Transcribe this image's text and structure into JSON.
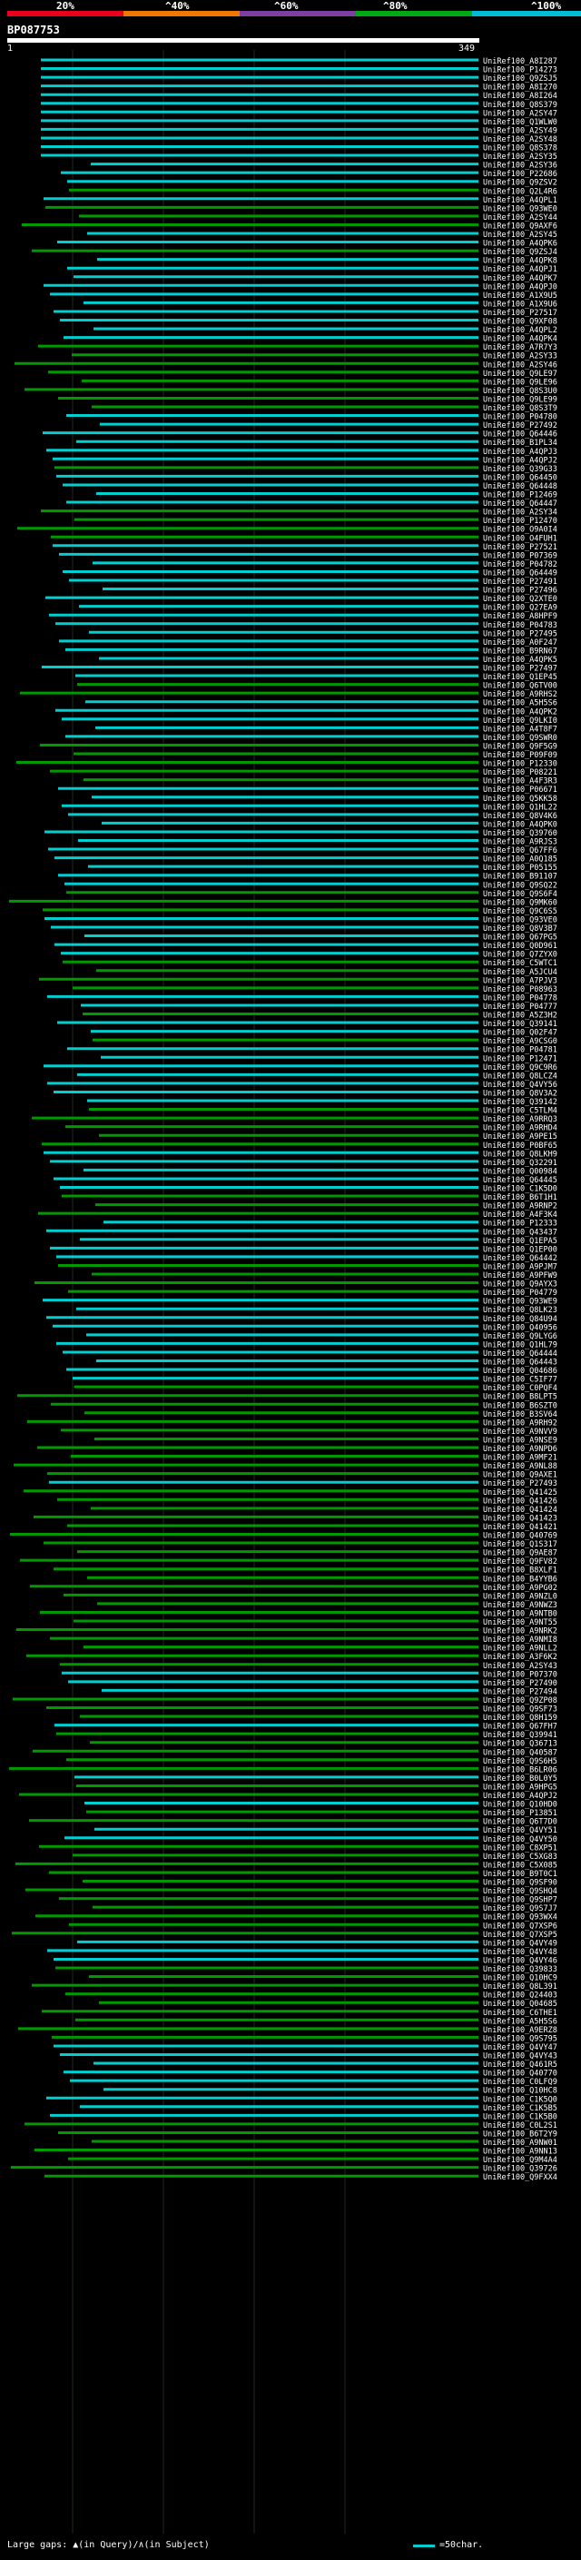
{
  "scale": {
    "labels": [
      "20%",
      "^40%",
      "^60%",
      "^80%",
      "^100%"
    ],
    "colors": [
      "#e8001c",
      "#f07800",
      "#7d3fa0",
      "#00a814",
      "#00bcd4"
    ]
  },
  "query": {
    "accession": "BP087753",
    "start": "1",
    "end": "349"
  },
  "footer": {
    "gaps_text": "Large gaps: ▲(in Query)/∧(in Subject)",
    "legend_text": "=50char."
  },
  "chart_data": {
    "type": "alignment",
    "title": "BP087753",
    "query_length": 349,
    "colors": {
      "cyan": "#00ced1",
      "green": "#009900"
    },
    "hits": [
      {
        "label": "UniRef100_A8I287",
        "color": "cyan"
      },
      {
        "label": "UniRef100_P14273",
        "color": "cyan"
      },
      {
        "label": "UniRef100_Q9ZSJ5",
        "color": "cyan"
      },
      {
        "label": "UniRef100_A8I270",
        "color": "cyan"
      },
      {
        "label": "UniRef100_A8I264",
        "color": "cyan"
      },
      {
        "label": "UniRef100_Q8S379",
        "color": "cyan"
      },
      {
        "label": "UniRef100_A2SY47",
        "color": "cyan"
      },
      {
        "label": "UniRef100_Q1WLW0",
        "color": "cyan"
      },
      {
        "label": "UniRef100_A2SY49",
        "color": "cyan"
      },
      {
        "label": "UniRef100_A2SY48",
        "color": "cyan"
      },
      {
        "label": "UniRef100_Q8S378",
        "color": "cyan"
      },
      {
        "label": "UniRef100_A2SY35",
        "color": "cyan"
      },
      {
        "label": "UniRef100_A2SY36",
        "color": "cyan"
      },
      {
        "label": "UniRef100_P22686",
        "color": "cyan"
      },
      {
        "label": "UniRef100_Q9ZSV2",
        "color": "cyan"
      },
      {
        "label": "UniRef100_Q2L4R6",
        "color": "green"
      },
      {
        "label": "UniRef100_A4QPL1",
        "color": "cyan"
      },
      {
        "label": "UniRef100_Q93WE0",
        "color": "green"
      },
      {
        "label": "UniRef100_A2SY44",
        "color": "green"
      },
      {
        "label": "UniRef100_Q9AXF6",
        "color": "green"
      },
      {
        "label": "UniRef100_A2SY45",
        "color": "cyan"
      },
      {
        "label": "UniRef100_A4QPK6",
        "color": "cyan"
      },
      {
        "label": "UniRef100_Q9ZSJ4",
        "color": "green"
      },
      {
        "label": "UniRef100_A4QPK8",
        "color": "cyan"
      },
      {
        "label": "UniRef100_A4QPJ1",
        "color": "cyan"
      },
      {
        "label": "UniRef100_A4QPK7",
        "color": "cyan"
      },
      {
        "label": "UniRef100_A4QPJ0",
        "color": "cyan"
      },
      {
        "label": "UniRef100_A1X9U5",
        "color": "cyan"
      },
      {
        "label": "UniRef100_A1X9U6",
        "color": "cyan"
      },
      {
        "label": "UniRef100_P27517",
        "color": "cyan"
      },
      {
        "label": "UniRef100_Q9XF08",
        "color": "cyan"
      },
      {
        "label": "UniRef100_A4QPL2",
        "color": "cyan"
      },
      {
        "label": "UniRef100_A4QPK4",
        "color": "cyan"
      },
      {
        "label": "UniRef100_A7R7Y3",
        "color": "green"
      },
      {
        "label": "UniRef100_A2SY33",
        "color": "green"
      },
      {
        "label": "UniRef100_A2SY46",
        "color": "green"
      },
      {
        "label": "UniRef100_Q9LE97",
        "color": "green"
      },
      {
        "label": "UniRef100_Q9LE96",
        "color": "green"
      },
      {
        "label": "UniRef100_Q8S3U0",
        "color": "green"
      },
      {
        "label": "UniRef100_Q9LE99",
        "color": "green"
      },
      {
        "label": "UniRef100_Q8S3T9",
        "color": "green"
      },
      {
        "label": "UniRef100_P04780",
        "color": "cyan"
      },
      {
        "label": "UniRef100_P27492",
        "color": "cyan"
      },
      {
        "label": "UniRef100_Q64446",
        "color": "cyan"
      },
      {
        "label": "UniRef100_B1PL34",
        "color": "cyan"
      },
      {
        "label": "UniRef100_A4QPJ3",
        "color": "cyan"
      },
      {
        "label": "UniRef100_A4QPJ2",
        "color": "cyan"
      },
      {
        "label": "UniRef100_Q39G33",
        "color": "green"
      },
      {
        "label": "UniRef100_Q64450",
        "color": "cyan"
      },
      {
        "label": "UniRef100_Q64448",
        "color": "cyan"
      },
      {
        "label": "UniRef100_P12469",
        "color": "cyan"
      },
      {
        "label": "UniRef100_Q64447",
        "color": "cyan"
      },
      {
        "label": "UniRef100_A2SY34",
        "color": "green"
      },
      {
        "label": "UniRef100_P12470",
        "color": "green"
      },
      {
        "label": "UniRef100_O9A0I4",
        "color": "green"
      },
      {
        "label": "UniRef100_O4FUH1",
        "color": "green"
      },
      {
        "label": "UniRef100_P27521",
        "color": "cyan"
      },
      {
        "label": "UniRef100_P07369",
        "color": "cyan"
      },
      {
        "label": "UniRef100_P04782",
        "color": "cyan"
      },
      {
        "label": "UniRef100_Q64449",
        "color": "cyan"
      },
      {
        "label": "UniRef100_P27491",
        "color": "cyan"
      },
      {
        "label": "UniRef100_P27496",
        "color": "cyan"
      },
      {
        "label": "UniRef100_Q2XTE0",
        "color": "cyan"
      },
      {
        "label": "UniRef100_Q27EA9",
        "color": "cyan"
      },
      {
        "label": "UniRef100_A8HPF9",
        "color": "cyan"
      },
      {
        "label": "UniRef100_P04783",
        "color": "cyan"
      },
      {
        "label": "UniRef100_P27495",
        "color": "cyan"
      },
      {
        "label": "UniRef100_A0F247",
        "color": "cyan"
      },
      {
        "label": "UniRef100_B9RN67",
        "color": "cyan"
      },
      {
        "label": "UniRef100_A4QPK5",
        "color": "cyan"
      },
      {
        "label": "UniRef100_P27497",
        "color": "cyan"
      },
      {
        "label": "UniRef100_Q1EP45",
        "color": "cyan"
      },
      {
        "label": "UniRef100_Q6TV00",
        "color": "green"
      },
      {
        "label": "UniRef100_A9RHS2",
        "color": "green"
      },
      {
        "label": "UniRef100_A5H5S6",
        "color": "cyan"
      },
      {
        "label": "UniRef100_A4QPK2",
        "color": "cyan"
      },
      {
        "label": "UniRef100_Q9LKI0",
        "color": "cyan"
      },
      {
        "label": "UniRef100_A4T8F7",
        "color": "cyan"
      },
      {
        "label": "UniRef100_Q9SWR0",
        "color": "cyan"
      },
      {
        "label": "UniRef100_Q9F5G9",
        "color": "green"
      },
      {
        "label": "UniRef100_P09F09",
        "color": "green"
      },
      {
        "label": "UniRef100_P12330",
        "color": "green"
      },
      {
        "label": "UniRef100_P08221",
        "color": "green"
      },
      {
        "label": "UniRef100_A4F3R3",
        "color": "green"
      },
      {
        "label": "UniRef100_P06671",
        "color": "cyan"
      },
      {
        "label": "UniRef100_Q5KK58",
        "color": "cyan"
      },
      {
        "label": "UniRef100_Q1HL22",
        "color": "cyan"
      },
      {
        "label": "UniRef100_Q8V4K6",
        "color": "cyan"
      },
      {
        "label": "UniRef100_A4QPK0",
        "color": "cyan"
      },
      {
        "label": "UniRef100_Q39760",
        "color": "cyan"
      },
      {
        "label": "UniRef100_A9RJS3",
        "color": "cyan"
      },
      {
        "label": "UniRef100_Q67FF6",
        "color": "cyan"
      },
      {
        "label": "UniRef100_A0Q185",
        "color": "cyan"
      },
      {
        "label": "UniRef100_P05155",
        "color": "cyan"
      },
      {
        "label": "UniRef100_B91107",
        "color": "cyan"
      },
      {
        "label": "UniRef100_Q9SQ22",
        "color": "cyan"
      },
      {
        "label": "UniRef100_Q9S6F4",
        "color": "green"
      },
      {
        "label": "UniRef100_Q9MK60",
        "color": "green"
      },
      {
        "label": "UniRef100_Q9C6S5",
        "color": "green"
      },
      {
        "label": "UniRef100_Q93VE0",
        "color": "cyan"
      },
      {
        "label": "UniRef100_Q8V3B7",
        "color": "cyan"
      },
      {
        "label": "UniRef100_Q67PG5",
        "color": "cyan"
      },
      {
        "label": "UniRef100_Q0D961",
        "color": "cyan"
      },
      {
        "label": "UniRef100_Q7ZYX0",
        "color": "cyan"
      },
      {
        "label": "UniRef100_C5WTC1",
        "color": "green"
      },
      {
        "label": "UniRef100_A5JCU4",
        "color": "green"
      },
      {
        "label": "UniRef100_A7PJV3",
        "color": "green"
      },
      {
        "label": "UniRef100_P08963",
        "color": "green"
      },
      {
        "label": "UniRef100_P04778",
        "color": "cyan"
      },
      {
        "label": "UniRef100_P04777",
        "color": "cyan"
      },
      {
        "label": "UniRef100_A5Z3H2",
        "color": "green"
      },
      {
        "label": "UniRef100_Q39141",
        "color": "cyan"
      },
      {
        "label": "UniRef100_Q02F47",
        "color": "cyan"
      },
      {
        "label": "UniRef100_A9CSG0",
        "color": "green"
      },
      {
        "label": "UniRef100_P04781",
        "color": "cyan"
      },
      {
        "label": "UniRef100_P12471",
        "color": "cyan"
      },
      {
        "label": "UniRef100_Q9C9R6",
        "color": "cyan"
      },
      {
        "label": "UniRef100_Q8LCZ4",
        "color": "cyan"
      },
      {
        "label": "UniRef100_Q4VY56",
        "color": "cyan"
      },
      {
        "label": "UniRef100_Q8V3A2",
        "color": "cyan"
      },
      {
        "label": "UniRef100_Q39142",
        "color": "cyan"
      },
      {
        "label": "UniRef100_C5TLM4",
        "color": "green"
      },
      {
        "label": "UniRef100_A9RRQ3",
        "color": "green"
      },
      {
        "label": "UniRef100_A9RHD4",
        "color": "green"
      },
      {
        "label": "UniRef100_A9PE15",
        "color": "green"
      },
      {
        "label": "UniRef100_P0BF65",
        "color": "green"
      },
      {
        "label": "UniRef100_Q8LKH9",
        "color": "cyan"
      },
      {
        "label": "UniRef100_Q32291",
        "color": "cyan"
      },
      {
        "label": "UniRef100_Q00984",
        "color": "cyan"
      },
      {
        "label": "UniRef100_Q64445",
        "color": "cyan"
      },
      {
        "label": "UniRef100_C1K5D0",
        "color": "cyan"
      },
      {
        "label": "UniRef100_B6T1H1",
        "color": "green"
      },
      {
        "label": "UniRef100_A9RNP2",
        "color": "green"
      },
      {
        "label": "UniRef100_A4F3K4",
        "color": "green"
      },
      {
        "label": "UniRef100_P12333",
        "color": "cyan"
      },
      {
        "label": "UniRef100_Q43437",
        "color": "cyan"
      },
      {
        "label": "UniRef100_Q1EPA5",
        "color": "cyan"
      },
      {
        "label": "UniRef100_Q1EP00",
        "color": "cyan"
      },
      {
        "label": "UniRef100_Q64442",
        "color": "cyan"
      },
      {
        "label": "UniRef100_A9PJM7",
        "color": "green"
      },
      {
        "label": "UniRef100_A9PFW9",
        "color": "green"
      },
      {
        "label": "UniRef100_Q9AYX3",
        "color": "green"
      },
      {
        "label": "UniRef100_P04779",
        "color": "green"
      },
      {
        "label": "UniRef100_Q93WE9",
        "color": "cyan"
      },
      {
        "label": "UniRef100_Q8LK23",
        "color": "cyan"
      },
      {
        "label": "UniRef100_Q84U94",
        "color": "cyan"
      },
      {
        "label": "UniRef100_Q40956",
        "color": "cyan"
      },
      {
        "label": "UniRef100_Q9LYG6",
        "color": "cyan"
      },
      {
        "label": "UniRef100_Q1HL79",
        "color": "cyan"
      },
      {
        "label": "UniRef100_Q64444",
        "color": "cyan"
      },
      {
        "label": "UniRef100_Q64443",
        "color": "cyan"
      },
      {
        "label": "UniRef100_Q04686",
        "color": "cyan"
      },
      {
        "label": "UniRef100_C5IF77",
        "color": "cyan"
      },
      {
        "label": "UniRef100_C0PQF4",
        "color": "green"
      },
      {
        "label": "UniRef100_B8LPT5",
        "color": "green"
      },
      {
        "label": "UniRef100_B6SZT0",
        "color": "green"
      },
      {
        "label": "UniRef100_B3SV64",
        "color": "green"
      },
      {
        "label": "UniRef100_A9RH92",
        "color": "green"
      },
      {
        "label": "UniRef100_A9NVV9",
        "color": "green"
      },
      {
        "label": "UniRef100_A9NSE9",
        "color": "green"
      },
      {
        "label": "UniRef100_A9NPD6",
        "color": "green"
      },
      {
        "label": "UniRef100_A9MF21",
        "color": "green"
      },
      {
        "label": "UniRef100_A9NL88",
        "color": "green"
      },
      {
        "label": "UniRef100_Q9AXE1",
        "color": "green"
      },
      {
        "label": "UniRef100_P27493",
        "color": "cyan"
      },
      {
        "label": "UniRef100_Q41425",
        "color": "green"
      },
      {
        "label": "UniRef100_Q41426",
        "color": "green"
      },
      {
        "label": "UniRef100_Q41424",
        "color": "green"
      },
      {
        "label": "UniRef100_Q41423",
        "color": "green"
      },
      {
        "label": "UniRef100_Q41421",
        "color": "green"
      },
      {
        "label": "UniRef100_Q40769",
        "color": "green"
      },
      {
        "label": "UniRef100_Q1S317",
        "color": "green"
      },
      {
        "label": "UniRef100_Q9AE87",
        "color": "green"
      },
      {
        "label": "UniRef100_Q9FV82",
        "color": "green"
      },
      {
        "label": "UniRef100_B8XLF1",
        "color": "green"
      },
      {
        "label": "UniRef100_B4YYB6",
        "color": "green"
      },
      {
        "label": "UniRef100_A9PG02",
        "color": "green"
      },
      {
        "label": "UniRef100_A9NZL0",
        "color": "green"
      },
      {
        "label": "UniRef100_A9NWZ3",
        "color": "green"
      },
      {
        "label": "UniRef100_A9NTB0",
        "color": "green"
      },
      {
        "label": "UniRef100_A9NT55",
        "color": "green"
      },
      {
        "label": "UniRef100_A9NRK2",
        "color": "green"
      },
      {
        "label": "UniRef100_A9NMI8",
        "color": "green"
      },
      {
        "label": "UniRef100_A9NLL2",
        "color": "green"
      },
      {
        "label": "UniRef100_A3F6K2",
        "color": "green"
      },
      {
        "label": "UniRef100_A2SY43",
        "color": "green"
      },
      {
        "label": "UniRef100_P07370",
        "color": "cyan"
      },
      {
        "label": "UniRef100_P27490",
        "color": "cyan"
      },
      {
        "label": "UniRef100_P27494",
        "color": "cyan"
      },
      {
        "label": "UniRef100_Q9ZP08",
        "color": "green"
      },
      {
        "label": "UniRef100_Q9SF73",
        "color": "green"
      },
      {
        "label": "UniRef100_Q8H159",
        "color": "green"
      },
      {
        "label": "UniRef100_Q67FH7",
        "color": "cyan"
      },
      {
        "label": "UniRef100_Q39941",
        "color": "green"
      },
      {
        "label": "UniRef100_Q36713",
        "color": "green"
      },
      {
        "label": "UniRef100_Q40587",
        "color": "green"
      },
      {
        "label": "UniRef100_Q9S6H5",
        "color": "green"
      },
      {
        "label": "UniRef100_B6LR06",
        "color": "green"
      },
      {
        "label": "UniRef100_B0L0Y5",
        "color": "cyan"
      },
      {
        "label": "UniRef100_A9HPG5",
        "color": "green"
      },
      {
        "label": "UniRef100_A4QPJ2",
        "color": "green"
      },
      {
        "label": "UniRef100_Q10HD0",
        "color": "cyan"
      },
      {
        "label": "UniRef100_P13851",
        "color": "green"
      },
      {
        "label": "UniRef100_Q6T7D0",
        "color": "green"
      },
      {
        "label": "UniRef100_Q4VY51",
        "color": "cyan"
      },
      {
        "label": "UniRef100_Q4VY50",
        "color": "cyan"
      },
      {
        "label": "UniRef100_C8XP51",
        "color": "green"
      },
      {
        "label": "UniRef100_C5XG83",
        "color": "green"
      },
      {
        "label": "UniRef100_C5X085",
        "color": "green"
      },
      {
        "label": "UniRef100_B9T0C1",
        "color": "green"
      },
      {
        "label": "UniRef100_Q9SF90",
        "color": "green"
      },
      {
        "label": "UniRef100_Q9SHQ4",
        "color": "green"
      },
      {
        "label": "UniRef100_Q9SHP7",
        "color": "green"
      },
      {
        "label": "UniRef100_Q9S7J7",
        "color": "green"
      },
      {
        "label": "UniRef100_Q93WX4",
        "color": "green"
      },
      {
        "label": "UniRef100_Q7XSP6",
        "color": "green"
      },
      {
        "label": "UniRef100_Q7XSP5",
        "color": "green"
      },
      {
        "label": "UniRef100_Q4VY49",
        "color": "cyan"
      },
      {
        "label": "UniRef100_Q4VY48",
        "color": "cyan"
      },
      {
        "label": "UniRef100_Q4VY46",
        "color": "cyan"
      },
      {
        "label": "UniRef100_Q39833",
        "color": "green"
      },
      {
        "label": "UniRef100_Q10HC9",
        "color": "green"
      },
      {
        "label": "UniRef100_Q8L391",
        "color": "green"
      },
      {
        "label": "UniRef100_Q24403",
        "color": "green"
      },
      {
        "label": "UniRef100_Q04685",
        "color": "green"
      },
      {
        "label": "UniRef100_C6THE1",
        "color": "green"
      },
      {
        "label": "UniRef100_A5H5S6",
        "color": "green"
      },
      {
        "label": "UniRef100_A9ERZ8",
        "color": "green"
      },
      {
        "label": "UniRef100_Q9S795",
        "color": "green"
      },
      {
        "label": "UniRef100_Q4VY47",
        "color": "cyan"
      },
      {
        "label": "UniRef100_Q4VY43",
        "color": "cyan"
      },
      {
        "label": "UniRef100_Q461R5",
        "color": "cyan"
      },
      {
        "label": "UniRef100_Q40770",
        "color": "cyan"
      },
      {
        "label": "UniRef100_C0LFQ9",
        "color": "cyan"
      },
      {
        "label": "UniRef100_Q10HC8",
        "color": "cyan"
      },
      {
        "label": "UniRef100_C1K5Q0",
        "color": "cyan"
      },
      {
        "label": "UniRef100_C1K5B5",
        "color": "cyan"
      },
      {
        "label": "UniRef100_C1K5B0",
        "color": "cyan"
      },
      {
        "label": "UniRef100_C0L2S1",
        "color": "green"
      },
      {
        "label": "UniRef100_B6T2Y9",
        "color": "green"
      },
      {
        "label": "UniRef100_A9NW01",
        "color": "green"
      },
      {
        "label": "UniRef100_A9NN13",
        "color": "green"
      },
      {
        "label": "UniRef100_Q9M4A4",
        "color": "green"
      },
      {
        "label": "UniRef100_Q39726",
        "color": "green"
      },
      {
        "label": "UniRef100_Q9FXX4",
        "color": "green"
      }
    ]
  }
}
